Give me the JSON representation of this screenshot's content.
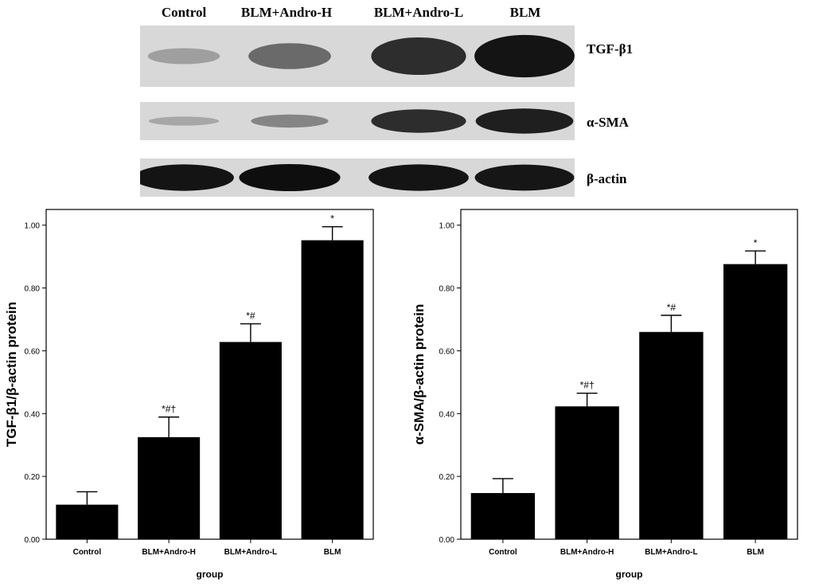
{
  "blot": {
    "lanes": [
      "Control",
      "BLM+Andro-H",
      "BLM+Andro-L",
      "BLM"
    ],
    "proteins": [
      "TGF-β1",
      "α-SMA",
      "β-actin"
    ],
    "band_intensity": {
      "TGF-β1": [
        0.15,
        0.45,
        0.8,
        0.95
      ],
      "α-SMA": [
        0.1,
        0.3,
        0.8,
        0.88
      ],
      "β-actin": [
        0.95,
        0.98,
        0.95,
        0.93
      ]
    },
    "colors": {
      "membrane": "#d8d8d8",
      "band": "#0a0a0a"
    }
  },
  "chart_data": [
    {
      "type": "bar",
      "categories": [
        "Control",
        "BLM+Andro-H",
        "BLM+Andro-L",
        "BLM"
      ],
      "values": [
        0.11,
        0.325,
        0.628,
        0.952
      ],
      "error_upper": [
        0.151,
        0.389,
        0.686,
        0.995
      ],
      "annotations": [
        "",
        "*#†",
        "*#",
        "*"
      ],
      "ylabel": "TGF-β1/β-actin protein",
      "xlabel": "group",
      "ylim": [
        0,
        1.05
      ],
      "yticks": [
        "0.00",
        "0.20",
        "0.40",
        "0.60",
        "0.80",
        "1.00"
      ],
      "grid": false,
      "bar_color": "#000000"
    },
    {
      "type": "bar",
      "categories": [
        "Control",
        "BLM+Andro-H",
        "BLM+Andro-L",
        "BLM"
      ],
      "values": [
        0.147,
        0.423,
        0.66,
        0.876
      ],
      "error_upper": [
        0.193,
        0.465,
        0.713,
        0.918
      ],
      "annotations": [
        "",
        "*#†",
        "*#",
        "*"
      ],
      "ylabel": "α-SMA/β-actin protein",
      "xlabel": "group",
      "ylim": [
        0,
        1.05
      ],
      "yticks": [
        "0.00",
        "0.20",
        "0.40",
        "0.60",
        "0.80",
        "1.00"
      ],
      "grid": false,
      "bar_color": "#000000"
    }
  ]
}
